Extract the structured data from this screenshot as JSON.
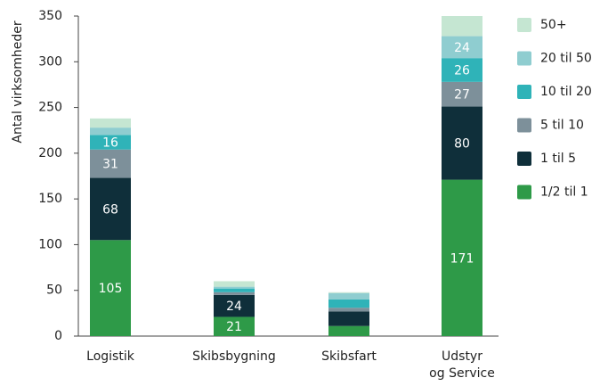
{
  "chart_data": {
    "type": "stacked_bar",
    "y_label": "Antal virksomheder",
    "categories": [
      "Logistik",
      "Skibsbygning",
      "Skibsfart",
      "Udstyr\nog Service"
    ],
    "series": [
      {
        "name": "1/2 til 1",
        "color": "#2e9a48",
        "values": [
          105,
          21,
          11,
          171
        ],
        "value_labels": [
          "105",
          "21",
          null,
          "171"
        ]
      },
      {
        "name": "1 til 5",
        "color": "#0f2f3a",
        "values": [
          68,
          24,
          16,
          80
        ],
        "value_labels": [
          "68",
          "24",
          null,
          "80"
        ]
      },
      {
        "name": "5 til 10",
        "color": "#7d909a",
        "values": [
          31,
          3,
          4,
          27
        ],
        "value_labels": [
          "31",
          null,
          null,
          "27"
        ]
      },
      {
        "name": "10 til 20",
        "color": "#2fb3b8",
        "values": [
          16,
          4,
          9,
          26
        ],
        "value_labels": [
          "16",
          null,
          null,
          "26"
        ]
      },
      {
        "name": "20 til 50",
        "color": "#8fcdd0",
        "values": [
          8,
          2,
          7,
          24
        ],
        "value_labels": [
          null,
          null,
          null,
          "24"
        ]
      },
      {
        "name": "50+",
        "color": "#c5e6d2",
        "values": [
          10,
          6,
          1,
          22
        ],
        "value_labels": [
          null,
          null,
          null,
          null
        ]
      }
    ],
    "ylim": [
      0,
      350
    ],
    "yticks": [
      0,
      50,
      100,
      150,
      200,
      250,
      300,
      350
    ],
    "legend": "right"
  }
}
